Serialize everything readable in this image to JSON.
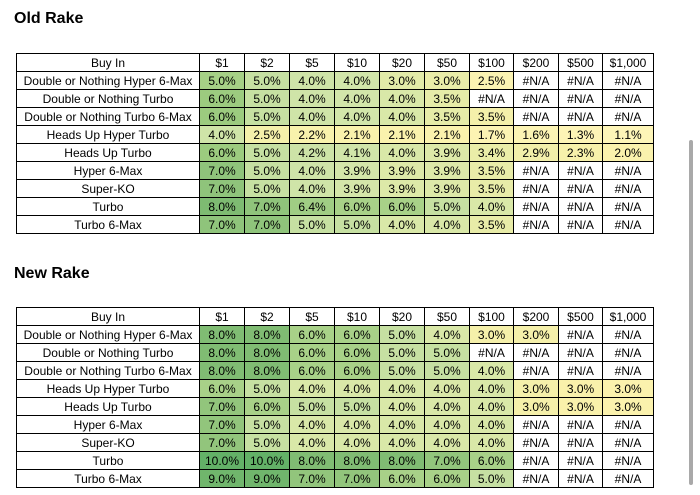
{
  "old_rake": {
    "title": "Old Rake",
    "header": [
      "Buy In",
      "$1",
      "$2",
      "$5",
      "$10",
      "$20",
      "$50",
      "$100",
      "$200",
      "$500",
      "$1,000"
    ],
    "rows": [
      {
        "label": "Double or Nothing Hyper 6-Max",
        "values": [
          "5.0%",
          "5.0%",
          "4.0%",
          "4.0%",
          "3.0%",
          "3.0%",
          "2.5%",
          "#N/A",
          "#N/A",
          "#N/A"
        ],
        "colors": [
          "#a6d086",
          "#c6e0a2",
          "#cfe4a8",
          "#d2e6aa",
          "#e2eba8",
          "#eaeda8",
          "#fbf3b2",
          "#ffffff",
          "#ffffff",
          "#ffffff"
        ]
      },
      {
        "label": "Double or Nothing Turbo",
        "values": [
          "6.0%",
          "5.0%",
          "4.0%",
          "4.0%",
          "4.0%",
          "3.5%",
          "#N/A",
          "#N/A",
          "#N/A",
          "#N/A"
        ],
        "colors": [
          "#9ccb7f",
          "#c6e0a2",
          "#cfe4a8",
          "#d2e6aa",
          "#d9e8a8",
          "#e6eca8",
          "#ffffff",
          "#ffffff",
          "#ffffff",
          "#ffffff"
        ]
      },
      {
        "label": "Double or Nothing Turbo 6-Max",
        "values": [
          "6.0%",
          "5.0%",
          "4.0%",
          "4.0%",
          "4.0%",
          "3.5%",
          "3.5%",
          "#N/A",
          "#N/A",
          "#N/A"
        ],
        "colors": [
          "#9ccb7f",
          "#c6e0a2",
          "#cfe4a8",
          "#d2e6aa",
          "#d9e8a8",
          "#e6eca8",
          "#f4f0aa",
          "#ffffff",
          "#ffffff",
          "#ffffff"
        ]
      },
      {
        "label": "Heads Up Hyper Turbo",
        "values": [
          "4.0%",
          "2.5%",
          "2.2%",
          "2.1%",
          "2.1%",
          "2.1%",
          "1.7%",
          "1.6%",
          "1.3%",
          "1.1%"
        ],
        "colors": [
          "#cfe4a8",
          "#f4f0aa",
          "#f8f2ac",
          "#f9f2ac",
          "#faf2ad",
          "#faf2ad",
          "#fcf3b3",
          "#fcf4b4",
          "#fdf4b6",
          "#fdf5b8"
        ]
      },
      {
        "label": "Heads Up Turbo",
        "values": [
          "6.0%",
          "5.0%",
          "4.2%",
          "4.1%",
          "4.0%",
          "3.9%",
          "3.4%",
          "2.9%",
          "2.3%",
          "2.0%"
        ],
        "colors": [
          "#9ccb7f",
          "#c6e0a2",
          "#cde3a7",
          "#d1e5a9",
          "#d9e8a8",
          "#dde9a8",
          "#eaeda8",
          "#f2efaa",
          "#f7f1ab",
          "#faf2ad"
        ]
      },
      {
        "label": "Hyper 6-Max",
        "values": [
          "7.0%",
          "5.0%",
          "4.0%",
          "3.9%",
          "3.9%",
          "3.9%",
          "3.5%",
          "#N/A",
          "#N/A",
          "#N/A"
        ],
        "colors": [
          "#8fc47b",
          "#c6e0a2",
          "#cfe4a8",
          "#d4e6a9",
          "#dde9a8",
          "#dde9a8",
          "#e8eca8",
          "#ffffff",
          "#ffffff",
          "#ffffff"
        ]
      },
      {
        "label": "Super-KO",
        "values": [
          "7.0%",
          "5.0%",
          "4.0%",
          "3.9%",
          "3.9%",
          "3.9%",
          "3.5%",
          "#N/A",
          "#N/A",
          "#N/A"
        ],
        "colors": [
          "#8fc47b",
          "#c6e0a2",
          "#cfe4a8",
          "#d4e6a9",
          "#dde9a8",
          "#dde9a8",
          "#e8eca8",
          "#ffffff",
          "#ffffff",
          "#ffffff"
        ]
      },
      {
        "label": "Turbo",
        "values": [
          "8.0%",
          "7.0%",
          "6.4%",
          "6.0%",
          "6.0%",
          "5.0%",
          "4.0%",
          "#N/A",
          "#N/A",
          "#N/A"
        ],
        "colors": [
          "#7ebb72",
          "#8fc47b",
          "#a0cd84",
          "#a8d188",
          "#a8d188",
          "#c6e0a2",
          "#d9e8a8",
          "#ffffff",
          "#ffffff",
          "#ffffff"
        ]
      },
      {
        "label": "Turbo 6-Max",
        "values": [
          "7.0%",
          "7.0%",
          "5.0%",
          "5.0%",
          "4.0%",
          "4.0%",
          "3.5%",
          "#N/A",
          "#N/A",
          "#N/A"
        ],
        "colors": [
          "#8fc47b",
          "#8fc47b",
          "#c6e0a2",
          "#c6e0a2",
          "#d9e8a8",
          "#d9e8a8",
          "#e8eca8",
          "#ffffff",
          "#ffffff",
          "#ffffff"
        ]
      }
    ]
  },
  "new_rake": {
    "title": "New Rake",
    "header": [
      "Buy In",
      "$1",
      "$2",
      "$5",
      "$10",
      "$20",
      "$50",
      "$100",
      "$200",
      "$500",
      "$1,000"
    ],
    "rows": [
      {
        "label": "Double or Nothing Hyper 6-Max",
        "values": [
          "8.0%",
          "8.0%",
          "6.0%",
          "6.0%",
          "5.0%",
          "4.0%",
          "3.0%",
          "3.0%",
          "#N/A",
          "#N/A"
        ],
        "colors": [
          "#80bc73",
          "#80bc73",
          "#a8d188",
          "#a8d188",
          "#c6e0a2",
          "#d9e8a8",
          "#f5f0aa",
          "#f5f0aa",
          "#ffffff",
          "#ffffff"
        ]
      },
      {
        "label": "Double or Nothing Turbo",
        "values": [
          "8.0%",
          "8.0%",
          "6.0%",
          "6.0%",
          "5.0%",
          "5.0%",
          "#N/A",
          "#N/A",
          "#N/A",
          "#N/A"
        ],
        "colors": [
          "#80bc73",
          "#80bc73",
          "#a8d188",
          "#a8d188",
          "#c6e0a2",
          "#c6e0a2",
          "#ffffff",
          "#ffffff",
          "#ffffff",
          "#ffffff"
        ]
      },
      {
        "label": "Double or Nothing Turbo 6-Max",
        "values": [
          "8.0%",
          "8.0%",
          "6.0%",
          "6.0%",
          "5.0%",
          "5.0%",
          "4.0%",
          "#N/A",
          "#N/A",
          "#N/A"
        ],
        "colors": [
          "#80bc73",
          "#80bc73",
          "#a8d188",
          "#a8d188",
          "#c6e0a2",
          "#c6e0a2",
          "#d9e8a8",
          "#ffffff",
          "#ffffff",
          "#ffffff"
        ]
      },
      {
        "label": "Heads Up Hyper Turbo",
        "values": [
          "6.0%",
          "5.0%",
          "4.0%",
          "4.0%",
          "4.0%",
          "4.0%",
          "4.0%",
          "3.0%",
          "3.0%",
          "3.0%"
        ],
        "colors": [
          "#a8d188",
          "#c6e0a2",
          "#d9e8a8",
          "#d9e8a8",
          "#d9e8a8",
          "#d9e8a8",
          "#d9e8a8",
          "#f5f0aa",
          "#f9f1ab",
          "#fbf2ad"
        ]
      },
      {
        "label": "Heads Up Turbo",
        "values": [
          "7.0%",
          "6.0%",
          "5.0%",
          "5.0%",
          "4.0%",
          "4.0%",
          "4.0%",
          "3.0%",
          "3.0%",
          "3.0%"
        ],
        "colors": [
          "#92c57c",
          "#a8d188",
          "#c6e0a2",
          "#c6e0a2",
          "#d9e8a8",
          "#d9e8a8",
          "#d9e8a8",
          "#f5f0aa",
          "#f9f1ab",
          "#fbf2ad"
        ]
      },
      {
        "label": "Hyper 6-Max",
        "values": [
          "7.0%",
          "5.0%",
          "4.0%",
          "4.0%",
          "4.0%",
          "4.0%",
          "4.0%",
          "#N/A",
          "#N/A",
          "#N/A"
        ],
        "colors": [
          "#92c57c",
          "#c6e0a2",
          "#d9e8a8",
          "#d9e8a8",
          "#d9e8a8",
          "#d9e8a8",
          "#d9e8a8",
          "#ffffff",
          "#ffffff",
          "#ffffff"
        ]
      },
      {
        "label": "Super-KO",
        "values": [
          "7.0%",
          "5.0%",
          "4.0%",
          "4.0%",
          "4.0%",
          "4.0%",
          "4.0%",
          "#N/A",
          "#N/A",
          "#N/A"
        ],
        "colors": [
          "#92c57c",
          "#c6e0a2",
          "#d9e8a8",
          "#d9e8a8",
          "#d9e8a8",
          "#d9e8a8",
          "#d9e8a8",
          "#ffffff",
          "#ffffff",
          "#ffffff"
        ]
      },
      {
        "label": "Turbo",
        "values": [
          "10.0%",
          "10.0%",
          "8.0%",
          "8.0%",
          "8.0%",
          "7.0%",
          "6.0%",
          "#N/A",
          "#N/A",
          "#N/A"
        ],
        "colors": [
          "#63b167",
          "#63b167",
          "#80bc73",
          "#80bc73",
          "#80bc73",
          "#92c57c",
          "#a8d188",
          "#ffffff",
          "#ffffff",
          "#ffffff"
        ]
      },
      {
        "label": "Turbo 6-Max",
        "values": [
          "9.0%",
          "9.0%",
          "7.0%",
          "7.0%",
          "6.0%",
          "6.0%",
          "5.0%",
          "#N/A",
          "#N/A",
          "#N/A"
        ],
        "colors": [
          "#70b66c",
          "#70b66c",
          "#92c57c",
          "#92c57c",
          "#a8d188",
          "#a8d188",
          "#c6e0a2",
          "#ffffff",
          "#ffffff",
          "#ffffff"
        ]
      }
    ]
  }
}
